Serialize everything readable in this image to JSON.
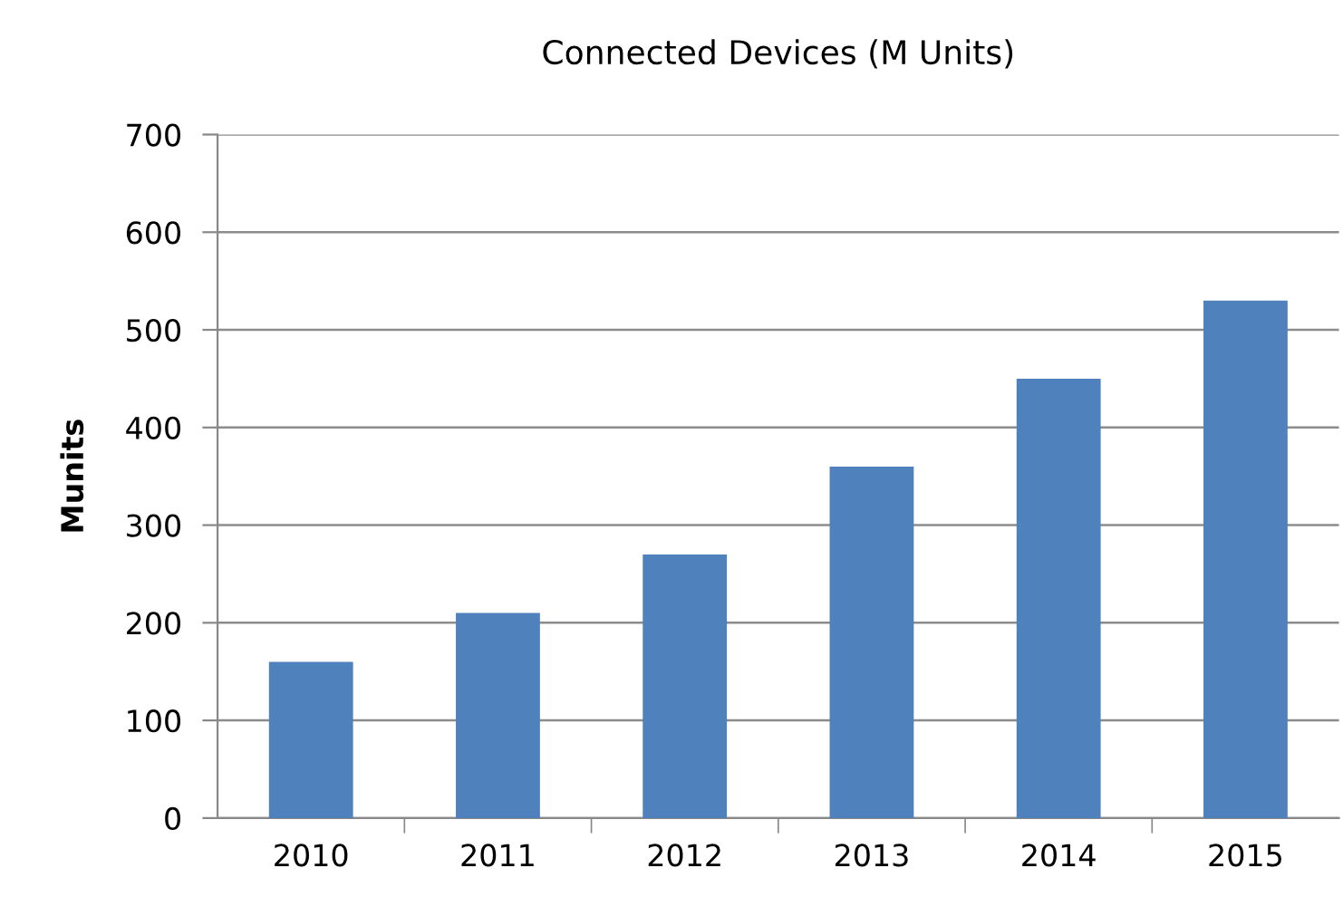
{
  "chart_data": {
    "type": "bar",
    "title": "Connected Devices (M Units)",
    "ylabel": "Munits",
    "categories": [
      "2010",
      "2011",
      "2012",
      "2013",
      "2014",
      "2015"
    ],
    "series": [
      {
        "color": "#4f81bd",
        "values": [
          160,
          210,
          270,
          360,
          450,
          530
        ]
      }
    ],
    "ylim": [
      0,
      700
    ],
    "yticks": [
      0,
      100,
      200,
      300,
      400,
      500,
      600,
      700
    ],
    "grid": "y"
  }
}
